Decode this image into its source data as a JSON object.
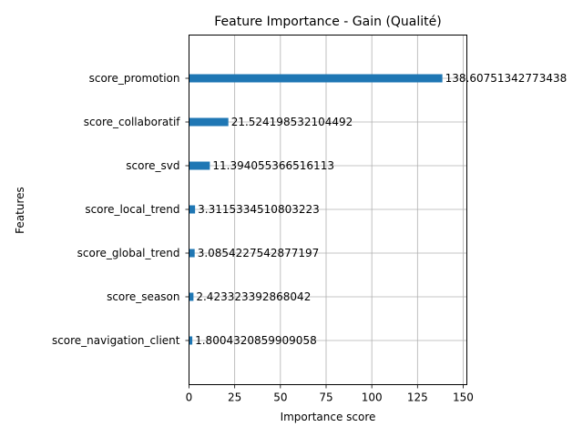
{
  "chart_data": {
    "type": "bar",
    "orientation": "horizontal",
    "title": "Feature Importance - Gain (Qualité)",
    "xlabel": "Importance score",
    "ylabel": "Features",
    "xlim": [
      0,
      152
    ],
    "x_ticks": [
      0,
      25,
      50,
      75,
      100,
      125,
      150
    ],
    "grid": true,
    "bar_color": "#1f77b4",
    "categories": [
      "score_promotion",
      "score_collaboratif",
      "score_svd",
      "score_local_trend",
      "score_global_trend",
      "score_season",
      "score_navigation_client"
    ],
    "values": [
      138.60751342773438,
      21.524198532104492,
      11.394055366516113,
      3.3115334510803223,
      3.0854227542877197,
      2.423323392868042,
      1.8004320859909058
    ],
    "value_labels": [
      "138.60751342773438",
      "21.524198532104492",
      "11.394055366516113",
      "3.3115334510803223",
      "3.0854227542877197",
      "2.423323392868042",
      "1.8004320859909058"
    ]
  }
}
